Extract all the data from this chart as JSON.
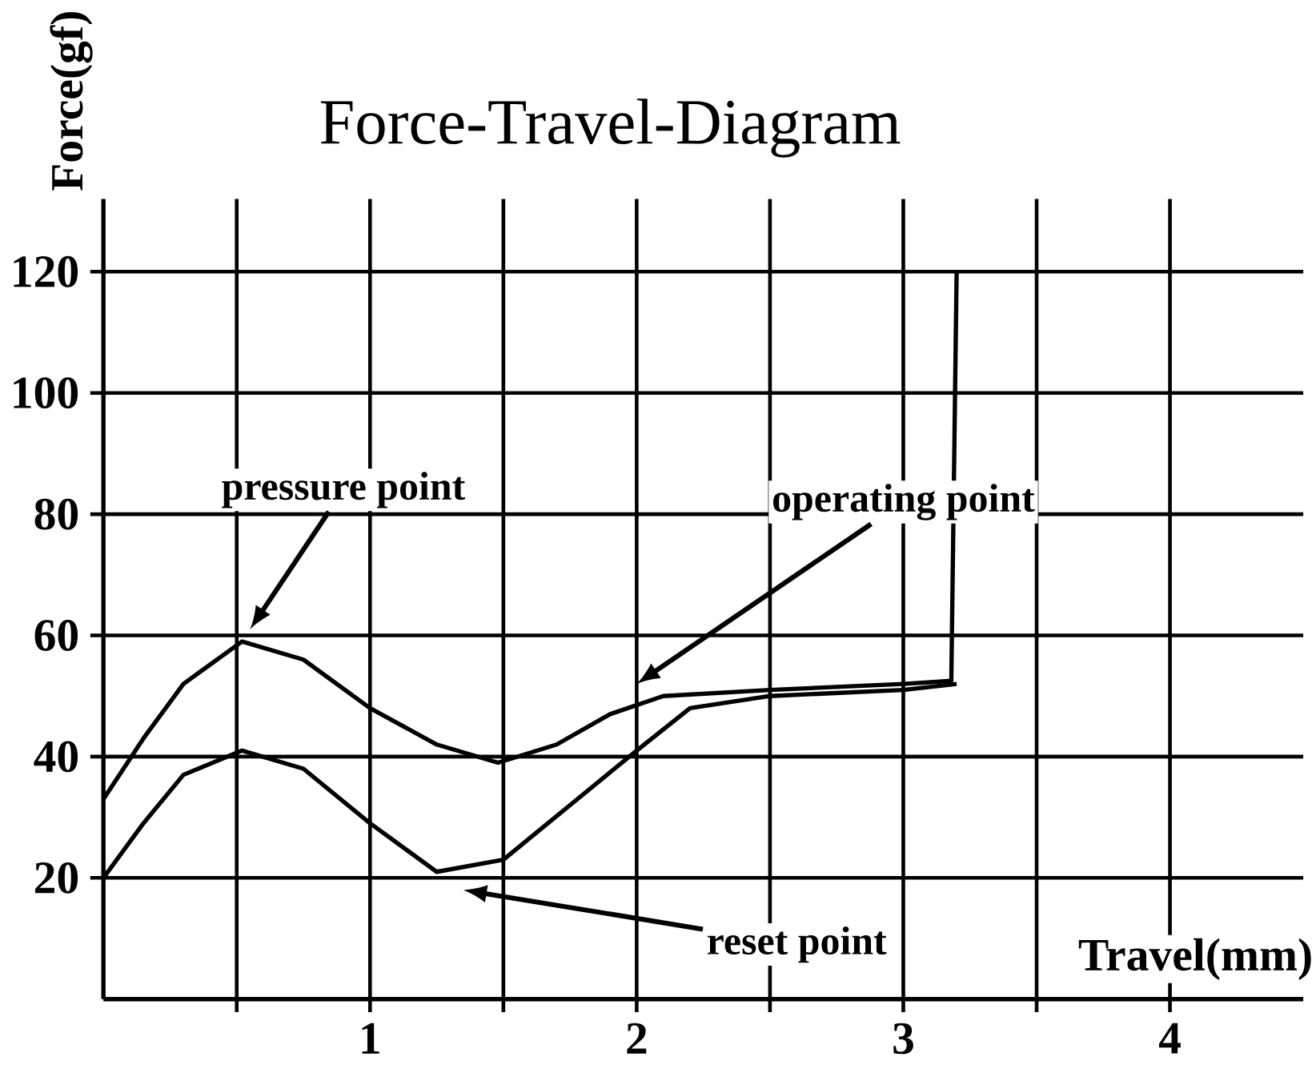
{
  "chart_data": {
    "type": "line",
    "title": "Force-Travel-Diagram",
    "xlabel": "Travel(mm)",
    "ylabel": "Force(gf)",
    "xlim": [
      0,
      4.5
    ],
    "ylim": [
      0,
      132
    ],
    "xticks": [
      {
        "value": 0,
        "label": null
      },
      {
        "value": 0.5,
        "label": null
      },
      1,
      {
        "value": 1.5,
        "label": null
      },
      2,
      {
        "value": 2.5,
        "label": null
      },
      3,
      {
        "value": 3.5,
        "label": null
      },
      4
    ],
    "yticks": [
      20,
      40,
      60,
      80,
      100,
      120
    ],
    "grid": true,
    "marker": "none",
    "line_style": "solid",
    "series": [
      {
        "color": "#000000",
        "x": [
          0,
          0.15,
          0.3,
          0.52,
          0.75,
          1.0,
          1.25,
          1.48,
          1.7,
          1.9,
          2.1,
          2.5,
          3.0,
          3.18,
          3.2
        ],
        "values": [
          33,
          43,
          52,
          59,
          56,
          48,
          42,
          39,
          42,
          47,
          50,
          51,
          52,
          52.5,
          120
        ]
      },
      {
        "color": "#000000",
        "x": [
          0,
          0.15,
          0.3,
          0.52,
          0.75,
          1.0,
          1.25,
          1.5,
          1.75,
          2.0,
          2.2,
          2.5,
          3.0,
          3.2
        ],
        "values": [
          20,
          29,
          37,
          41,
          38,
          29,
          21,
          23,
          32,
          41,
          48,
          50,
          51,
          52
        ]
      }
    ],
    "annotations": [
      "pressure point",
      "operating point",
      "reset point"
    ]
  }
}
